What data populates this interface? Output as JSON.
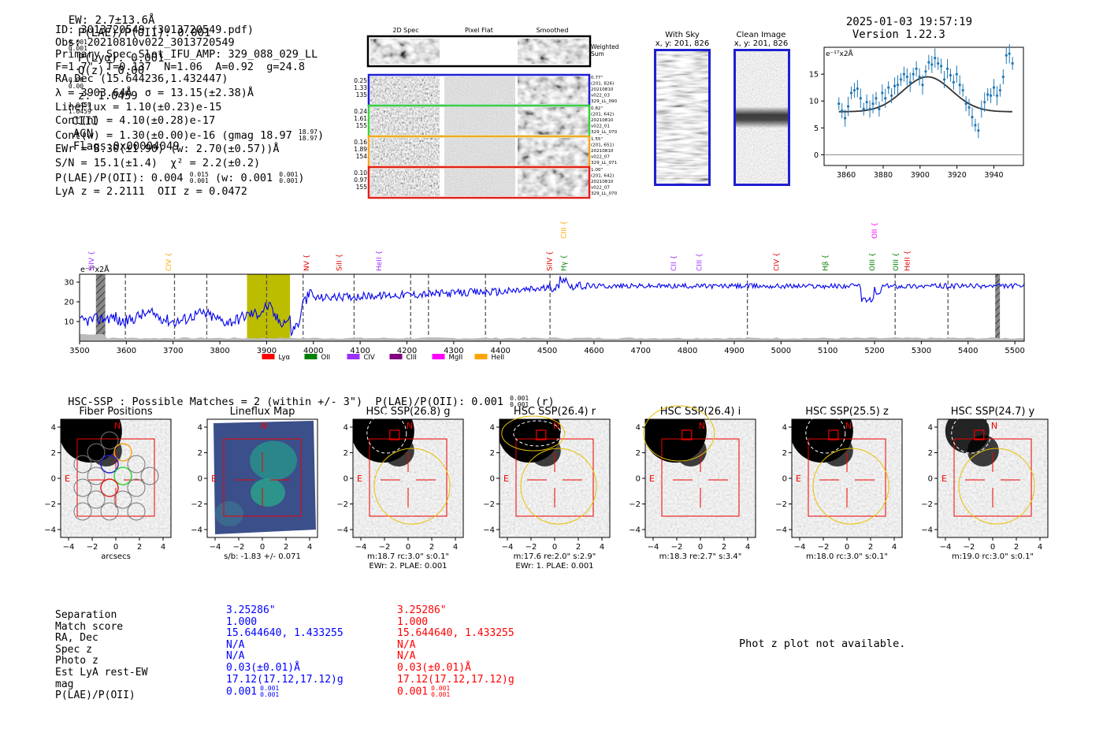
{
  "header": {
    "ew": "EW: 2.7±13.6Å",
    "plae_label": "P(LAE)/P(OII): 0.001",
    "plae_sup": "0.001",
    "plae_sub": "0.001",
    "plya": "P(Lyα): 0.001",
    "qz_label": "Q(z): 0.00",
    "qz_sup": "0.00",
    "qz_sub": "0.00",
    "z_label": "z: 1.0459",
    "z_sup": "1.0459",
    "z_sub": "1.0459",
    "line": "CIII",
    "type": "AGN",
    "flags": "Flags:0x00004049",
    "datetime": "2025-01-03 19:57:19",
    "version": "Version 1.22.3"
  },
  "info": {
    "id": "ID: 3013720549 (3013720549.pdf)",
    "obs": "Obs: 20210810v022_3013720549",
    "primary": "Primary Spec_Slot_IFU_AMP: 329_088_029_LL",
    "params": "F=1.7\"  T=0.137  N=1.06  A=0.92  g=24.8",
    "radec": "RA,Dec (15.644236,1.432447)",
    "lambda": "λ = 3903.64Å  σ = 13.15(±2.38)Å",
    "lineflux": "LineFlux = 1.10(±0.23)e-15",
    "contn": "Cont(n) = 4.10(±0.28)e-17",
    "contw": "Cont(w) = 1.30(±0.00)e-16 (gmag 18.97",
    "contw_sup": "18.97",
    "contw_sub": "18.97",
    "ewr": "EWr = 8.30(±1.90) (w: 2.70(±0.57))Å",
    "sn": "S/N = 15.1(±1.4)  χ² = 2.2(±0.2)",
    "plae": "P(LAE)/P(OII): 0.004",
    "plae_sup": "0.015",
    "plae_sub": "0.001",
    "plae_w": "(w: 0.001",
    "plae_w_sup": "0.001",
    "plae_w_sub": "0.001",
    "lyaz": "LyA z = 2.2111  OII z = 0.0472"
  },
  "spec2d": {
    "col_labels": [
      "2D Spec",
      "Pixel Flat",
      "Smoothed"
    ],
    "sum_label_1": "Weighted",
    "sum_label_2": "Sum",
    "rows": [
      {
        "left": [
          "0.25",
          "1.33",
          "135"
        ],
        "right": [
          "0.77\"",
          "(201, 826)",
          "20210810",
          "v022_03",
          "329_LL_090"
        ],
        "color": "#1f1fd0"
      },
      {
        "left": [
          "0.24",
          "1.61",
          "155"
        ],
        "right": [
          "0.82\"",
          "(201, 642)",
          "20210810",
          "v022_01",
          "329_LL_070"
        ],
        "color": "#3ad13a"
      },
      {
        "left": [
          "0.16",
          "1.89",
          "154"
        ],
        "right": [
          "1.55\"",
          "(201, 651)",
          "20210810",
          "v022_07",
          "329_LL_071"
        ],
        "color": "#f5a623"
      },
      {
        "left": [
          "0.10",
          "0.97",
          "155"
        ],
        "right": [
          "1.00\"",
          "(201, 642)",
          "20210810",
          "v022_07",
          "329_LL_070"
        ],
        "color": "#e0201a"
      }
    ]
  },
  "sky": {
    "with_sky_title": "With Sky",
    "with_sky_xy": "x, y: 201, 826",
    "clean_title": "Clean Image",
    "clean_xy": "x, y: 201, 826"
  },
  "zoom_chart": {
    "ylabel": "e⁻¹⁷x2Å",
    "xticks": [
      "3860",
      "3880",
      "3900",
      "3920",
      "3940"
    ],
    "yticks": [
      "0",
      "5",
      "10",
      "15"
    ]
  },
  "chart_data": {
    "type": "line",
    "title": "",
    "ylabel": "e⁻¹⁷x2Å",
    "xlim": [
      3500,
      5520
    ],
    "ylim": [
      0,
      34
    ],
    "xticks": [
      3500,
      3600,
      3700,
      3800,
      3900,
      4000,
      4100,
      4200,
      4300,
      4400,
      4500,
      4600,
      4700,
      4800,
      4900,
      5000,
      5100,
      5200,
      5300,
      5400,
      5500
    ],
    "yticks": [
      10,
      20,
      30
    ],
    "dashed_lines": [
      3598,
      3703,
      3772,
      3900,
      3978,
      4087,
      4208,
      4246,
      4368,
      4506,
      4928,
      5244,
      5357
    ],
    "highlight": [
      3858,
      3950
    ],
    "hatched": [
      [
        3535,
        3555
      ],
      [
        5458,
        5468
      ]
    ],
    "line_labels": [
      {
        "name": "SiIV",
        "x": 3525,
        "color": "#9b30ff"
      },
      {
        "name": "CIV",
        "x": 3690,
        "color": "#ffa500"
      },
      {
        "name": "NV",
        "x": 3985,
        "color": "#e00000"
      },
      {
        "name": "SiII",
        "x": 4055,
        "color": "#e00000"
      },
      {
        "name": "HeII",
        "x": 4140,
        "color": "#9b30ff"
      },
      {
        "name": "SiIV",
        "x": 4505,
        "color": "#e00000"
      },
      {
        "name": "Hγ",
        "x": 4535,
        "color": "#008000"
      },
      {
        "name": "CIII",
        "x": 4535,
        "color": "#ffa500",
        "high": true
      },
      {
        "name": "CII",
        "x": 4770,
        "color": "#9b30ff"
      },
      {
        "name": "CIII",
        "x": 4825,
        "color": "#9b30ff"
      },
      {
        "name": "CIV",
        "x": 4990,
        "color": "#e00000"
      },
      {
        "name": "Hβ",
        "x": 5095,
        "color": "#008000"
      },
      {
        "name": "OIII",
        "x": 5195,
        "color": "#008000"
      },
      {
        "name": "OII",
        "x": 5200,
        "color": "#ff00ff",
        "high": true
      },
      {
        "name": "OIII",
        "x": 5245,
        "color": "#008000"
      },
      {
        "name": "HeII",
        "x": 5270,
        "color": "#e00000"
      }
    ],
    "legend": [
      {
        "name": "Lyα",
        "color": "#ff0000"
      },
      {
        "name": "OII",
        "color": "#008000"
      },
      {
        "name": "CIV",
        "color": "#9b30ff"
      },
      {
        "name": "CIII",
        "color": "#800080"
      },
      {
        "name": "MgII",
        "color": "#ff00ff"
      },
      {
        "name": "HeII",
        "color": "#ffa500"
      }
    ]
  },
  "hsc": {
    "title": "HSC-SSP : Possible Matches = 2 (within +/- 3\")  P(LAE)/P(OII): 0.001",
    "title_sup": "0.001",
    "title_sub": "0.001",
    "title_suffix": "(r)",
    "axis_ticks": [
      "−4",
      "−2",
      "0",
      "2",
      "4"
    ],
    "cutouts": [
      {
        "title": "Fiber Positions",
        "caption": "arcsecs",
        "caption2": ""
      },
      {
        "title": "Lineflux Map",
        "caption": "s/b: -1.83 +/- 0.071",
        "caption2": ""
      },
      {
        "title": "HSC SSP(26.8) g",
        "caption": "m:18.7 rc:3.0\"  s:0.1\"",
        "caption2": "EWr: 2. PLAE: 0.001"
      },
      {
        "title": "HSC SSP(26.4) r",
        "caption": "m:17.6  re:2.0\"  s:2.9\"",
        "caption2": "EWr: 1. PLAE: 0.001"
      },
      {
        "title": "HSC SSP(26.4) i",
        "caption": "m:18.3  re:2.7\"  s:3.4\"",
        "caption2": ""
      },
      {
        "title": "HSC SSP(25.5) z",
        "caption": "m:18.0 rc:3.0\"  s:0.1\"",
        "caption2": ""
      },
      {
        "title": "HSC SSP(24.7) y",
        "caption": "m:19.0 rc:3.0\"  s:0.1\"",
        "caption2": ""
      }
    ]
  },
  "match_table": {
    "labels": [
      "Separation",
      "Match score",
      "RA, Dec",
      "Spec z",
      "Photo z",
      "Est LyA rest-EW",
      "mag",
      "P(LAE)/P(OII)"
    ],
    "col1": [
      "3.25286\"",
      "1.000",
      "15.644640, 1.433255",
      "N/A",
      "N/A",
      "0.03(±0.01)Å",
      "17.12(17.12,17.12)g",
      "0.001"
    ],
    "col2": [
      "3.25286\"",
      "1.000",
      "15.644640, 1.433255",
      "N/A",
      "N/A",
      "0.03(±0.01)Å",
      "17.12(17.12,17.12)g",
      "0.001"
    ],
    "plae_sup": "0.001",
    "plae_sub": "0.001",
    "col1_color": "#0000ff",
    "col2_color": "#ff0000"
  },
  "photz": "Phot z plot not available."
}
